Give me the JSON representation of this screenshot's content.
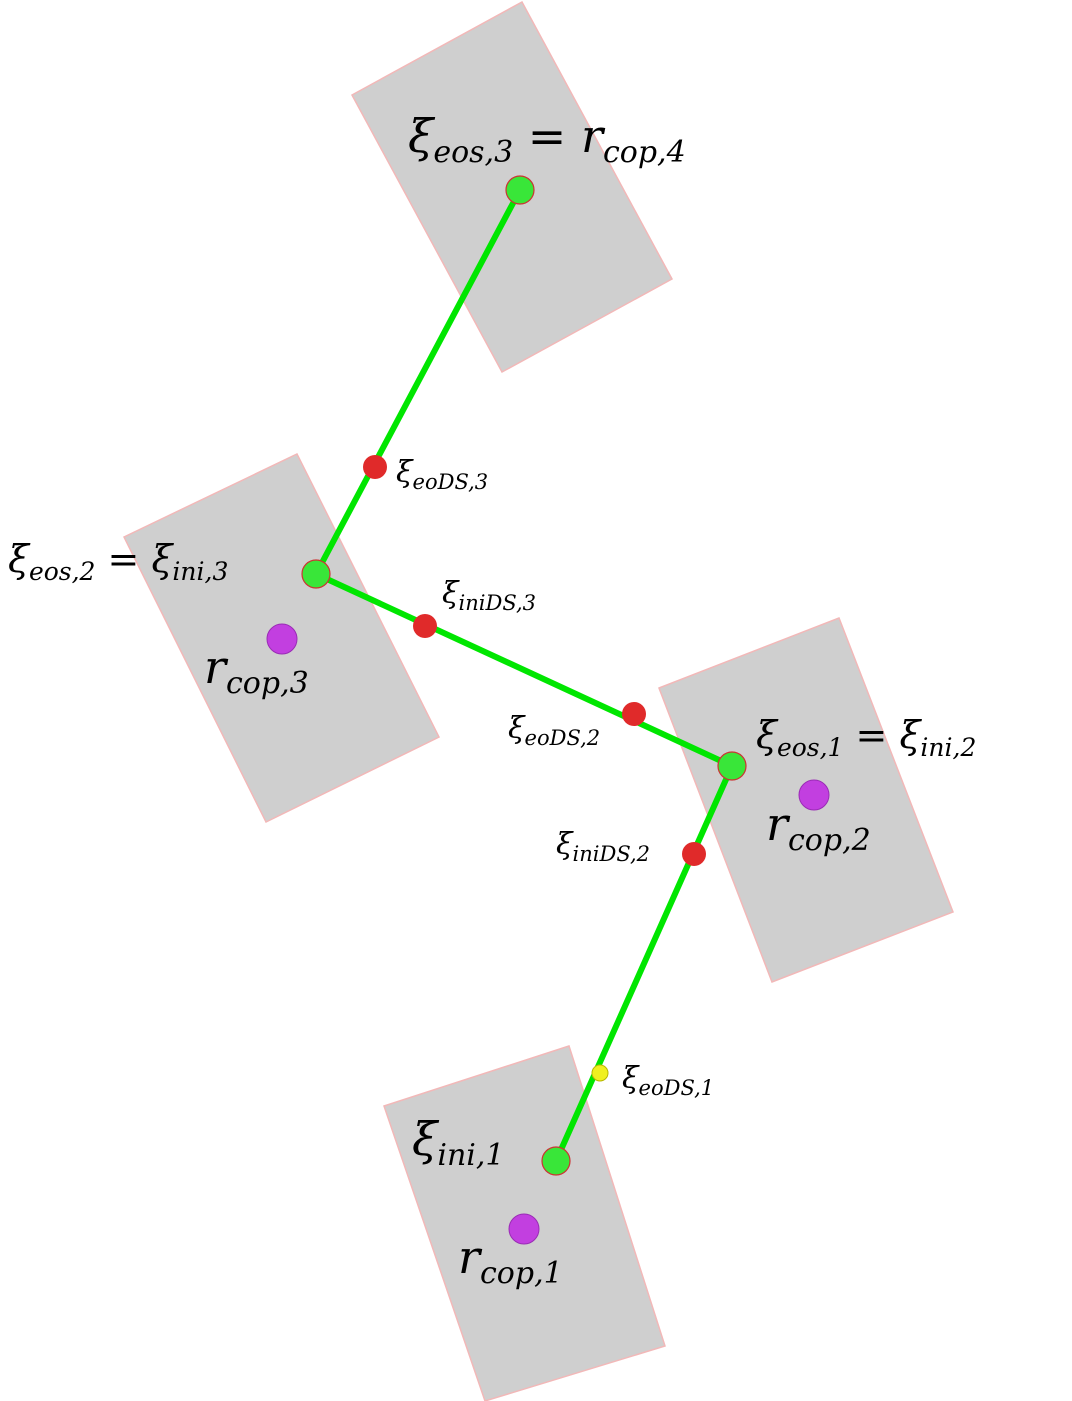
{
  "colors": {
    "footprint_fill": "#cfcfcf",
    "footprint_edge": "#f2b8b8",
    "path_line": "#00e600",
    "keypoint_fill": "#39e639",
    "keypoint_edge": "#cc3333",
    "ds_point": "#e02a2a",
    "ds_point_first": "#f0f020",
    "cop_point": "#c23fe0"
  },
  "labels": {
    "eos3_cop4": {
      "a_base": "ξ",
      "a_sub": "eos,3",
      "eq": " = ",
      "b_base": "r",
      "b_sub": "cop,4"
    },
    "eods3": {
      "base": "ξ",
      "sub": "eoDS,3"
    },
    "eos2_ini3": {
      "a_base": "ξ",
      "a_sub": "eos,2",
      "eq": " = ",
      "b_base": "ξ",
      "b_sub": "ini,3"
    },
    "inids3": {
      "base": "ξ",
      "sub": "iniDS,3"
    },
    "cop3": {
      "base": "r",
      "sub": "cop,3"
    },
    "eods2": {
      "base": "ξ",
      "sub": "eoDS,2"
    },
    "eos1_ini2": {
      "a_base": "ξ",
      "a_sub": "eos,1",
      "eq": " = ",
      "b_base": "ξ",
      "b_sub": "ini,2"
    },
    "cop2": {
      "base": "r",
      "sub": "cop,2"
    },
    "inids2": {
      "base": "ξ",
      "sub": "iniDS,2"
    },
    "eods1": {
      "base": "ξ",
      "sub": "eoDS,1"
    },
    "ini1": {
      "base": "ξ",
      "sub": "ini,1"
    },
    "cop1": {
      "base": "r",
      "sub": "cop,1"
    }
  }
}
